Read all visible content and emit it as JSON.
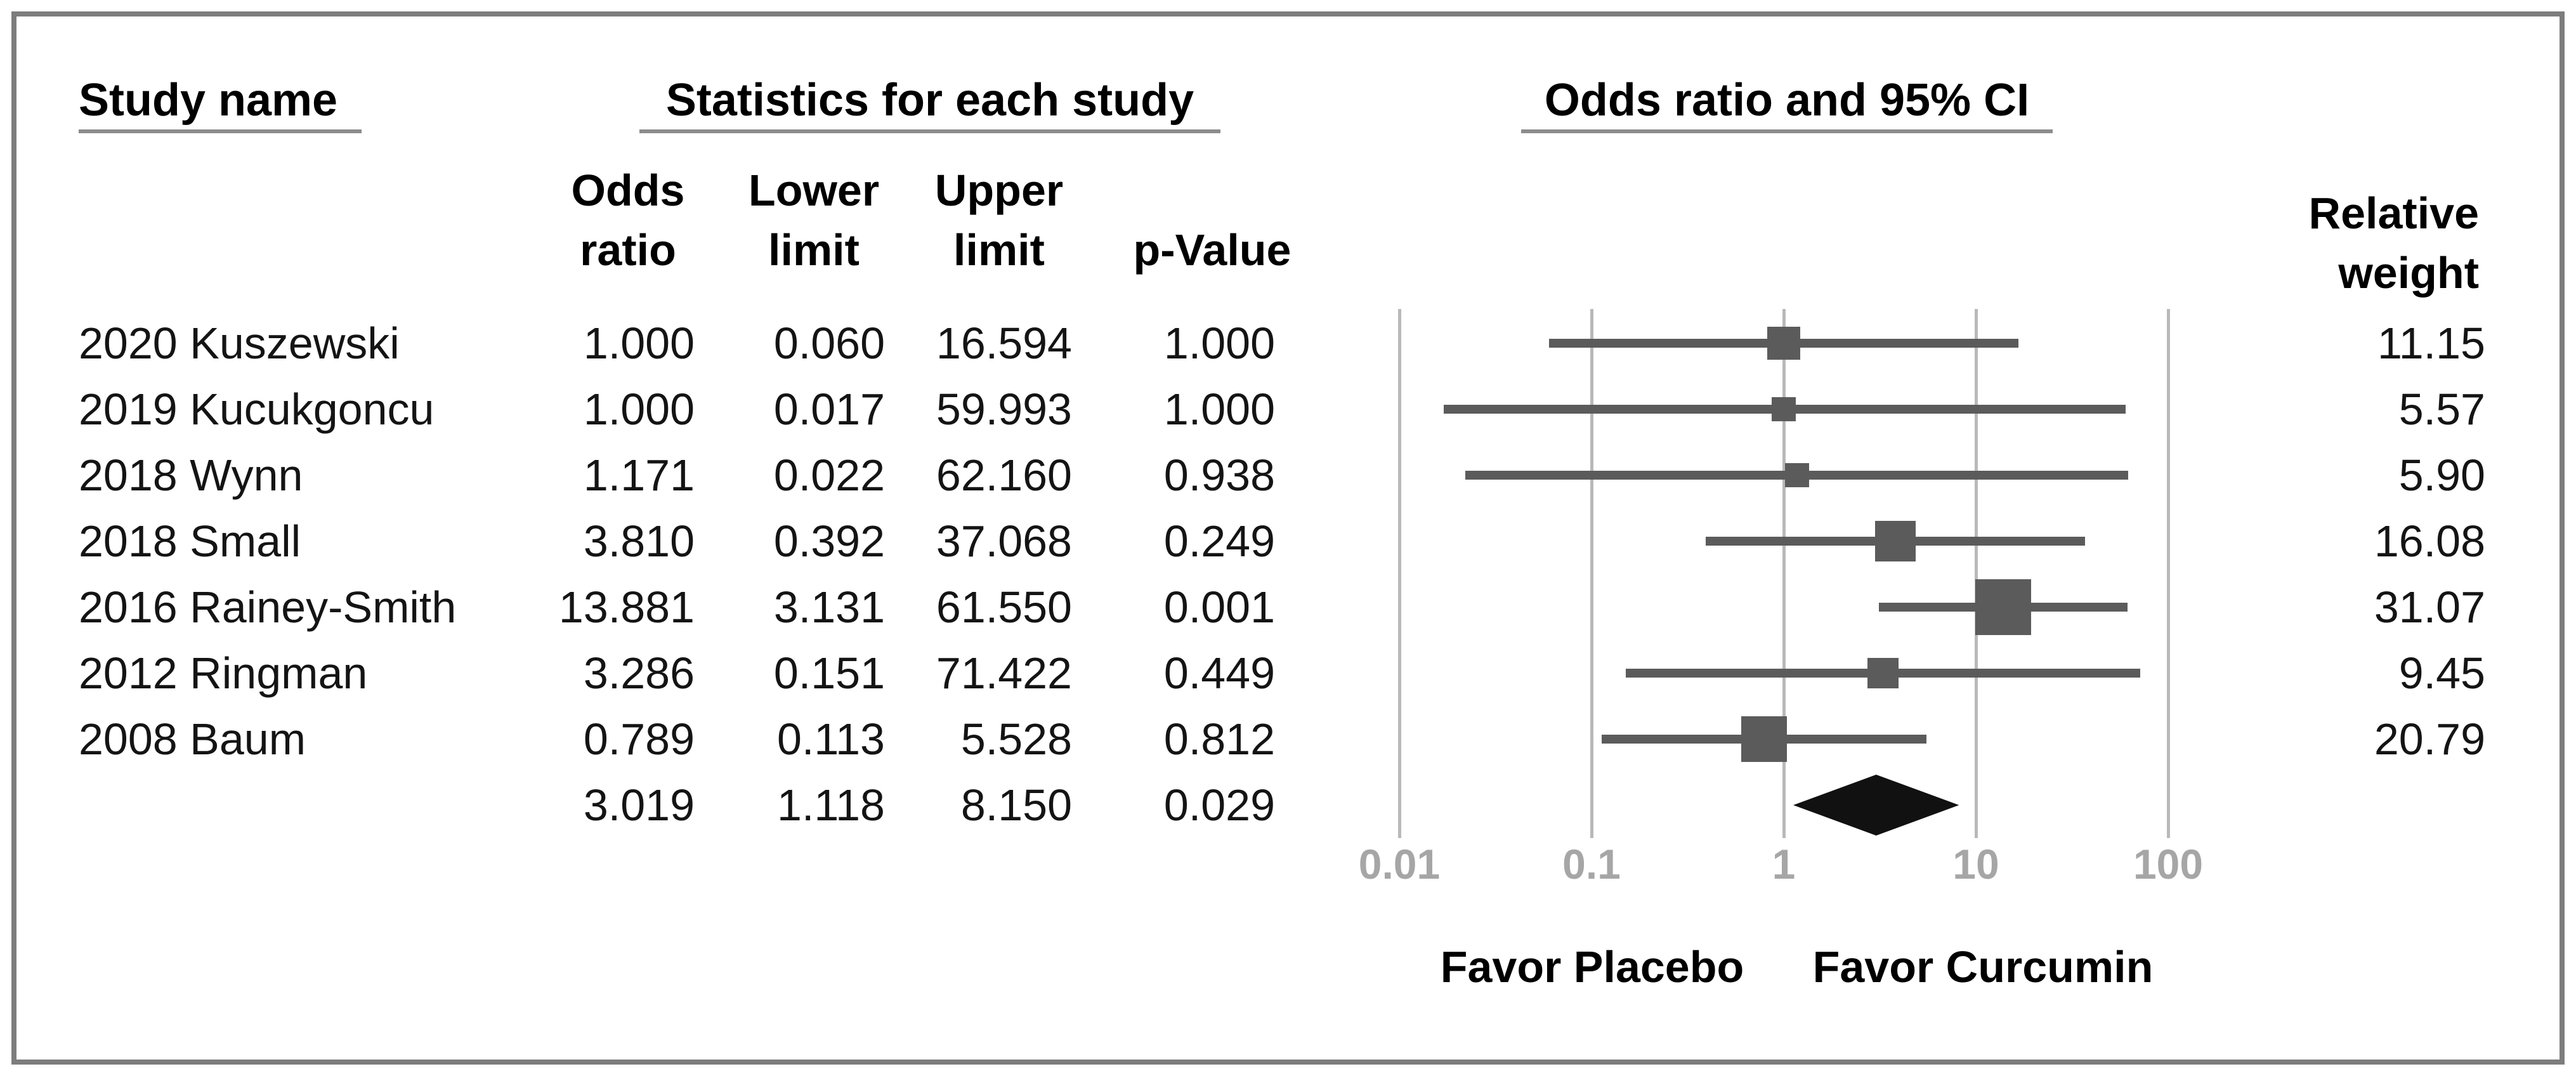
{
  "colors": {
    "border": "#7d7d7d",
    "underline": "#8c8c8c",
    "text": "#000000",
    "body_text": "#141414",
    "gridline": "#b9b9b9",
    "marker": "#5b5b5b",
    "diamond": "#111111",
    "axis_label": "#a6a6a6",
    "background": "#ffffff"
  },
  "headers": {
    "study_name": "Study name",
    "statistics": "Statistics for each study",
    "odds_ratio_ci": "Odds ratio and 95% CI",
    "col_odds": "Odds",
    "col_odds2": "ratio",
    "col_lower": "Lower",
    "col_lower2": "limit",
    "col_upper": "Upper",
    "col_upper2": "limit",
    "col_pvalue": "p-Value",
    "col_relative": "Relative",
    "col_weight": "weight"
  },
  "chart_data": {
    "type": "forest",
    "x_axis": {
      "scale": "log10",
      "range": [
        0.01,
        100
      ],
      "ticks": [
        0.01,
        0.1,
        1,
        10,
        100
      ],
      "tick_labels": [
        "0.01",
        "0.1",
        "1",
        "10",
        "100"
      ]
    },
    "footer_labels": {
      "left": "Favor Placebo",
      "right": "Favor Curcumin"
    },
    "studies": [
      {
        "name": "2020 Kuszewski",
        "odds_ratio": 1.0,
        "lower_limit": 0.06,
        "upper_limit": 16.594,
        "p_value": 1.0,
        "relative_weight": 11.15,
        "texts": {
          "or": "1.000",
          "ll": "0.060",
          "ul": "16.594",
          "p": "1.000",
          "w": "11.15"
        }
      },
      {
        "name": "2019 Kucukgoncu",
        "odds_ratio": 1.0,
        "lower_limit": 0.017,
        "upper_limit": 59.993,
        "p_value": 1.0,
        "relative_weight": 5.57,
        "texts": {
          "or": "1.000",
          "ll": "0.017",
          "ul": "59.993",
          "p": "1.000",
          "w": "5.57"
        }
      },
      {
        "name": "2018 Wynn",
        "odds_ratio": 1.171,
        "lower_limit": 0.022,
        "upper_limit": 62.16,
        "p_value": 0.938,
        "relative_weight": 5.9,
        "texts": {
          "or": "1.171",
          "ll": "0.022",
          "ul": "62.160",
          "p": "0.938",
          "w": "5.90"
        }
      },
      {
        "name": "2018 Small",
        "odds_ratio": 3.81,
        "lower_limit": 0.392,
        "upper_limit": 37.068,
        "p_value": 0.249,
        "relative_weight": 16.08,
        "texts": {
          "or": "3.810",
          "ll": "0.392",
          "ul": "37.068",
          "p": "0.249",
          "w": "16.08"
        }
      },
      {
        "name": "2016 Rainey-Smith",
        "odds_ratio": 13.881,
        "lower_limit": 3.131,
        "upper_limit": 61.55,
        "p_value": 0.001,
        "relative_weight": 31.07,
        "texts": {
          "or": "13.881",
          "ll": "3.131",
          "ul": "61.550",
          "p": "0.001",
          "w": "31.07"
        }
      },
      {
        "name": "2012 Ringman",
        "odds_ratio": 3.286,
        "lower_limit": 0.151,
        "upper_limit": 71.422,
        "p_value": 0.449,
        "relative_weight": 9.45,
        "texts": {
          "or": "3.286",
          "ll": "0.151",
          "ul": "71.422",
          "p": "0.449",
          "w": "9.45"
        }
      },
      {
        "name": "2008 Baum",
        "odds_ratio": 0.789,
        "lower_limit": 0.113,
        "upper_limit": 5.528,
        "p_value": 0.812,
        "relative_weight": 20.79,
        "texts": {
          "or": "0.789",
          "ll": "0.113",
          "ul": "5.528",
          "p": "0.812",
          "w": "20.79"
        }
      }
    ],
    "overall": {
      "odds_ratio": 3.019,
      "lower_limit": 1.118,
      "upper_limit": 8.15,
      "p_value": 0.029,
      "texts": {
        "or": "3.019",
        "ll": "1.118",
        "ul": "8.150",
        "p": "0.029"
      }
    }
  }
}
